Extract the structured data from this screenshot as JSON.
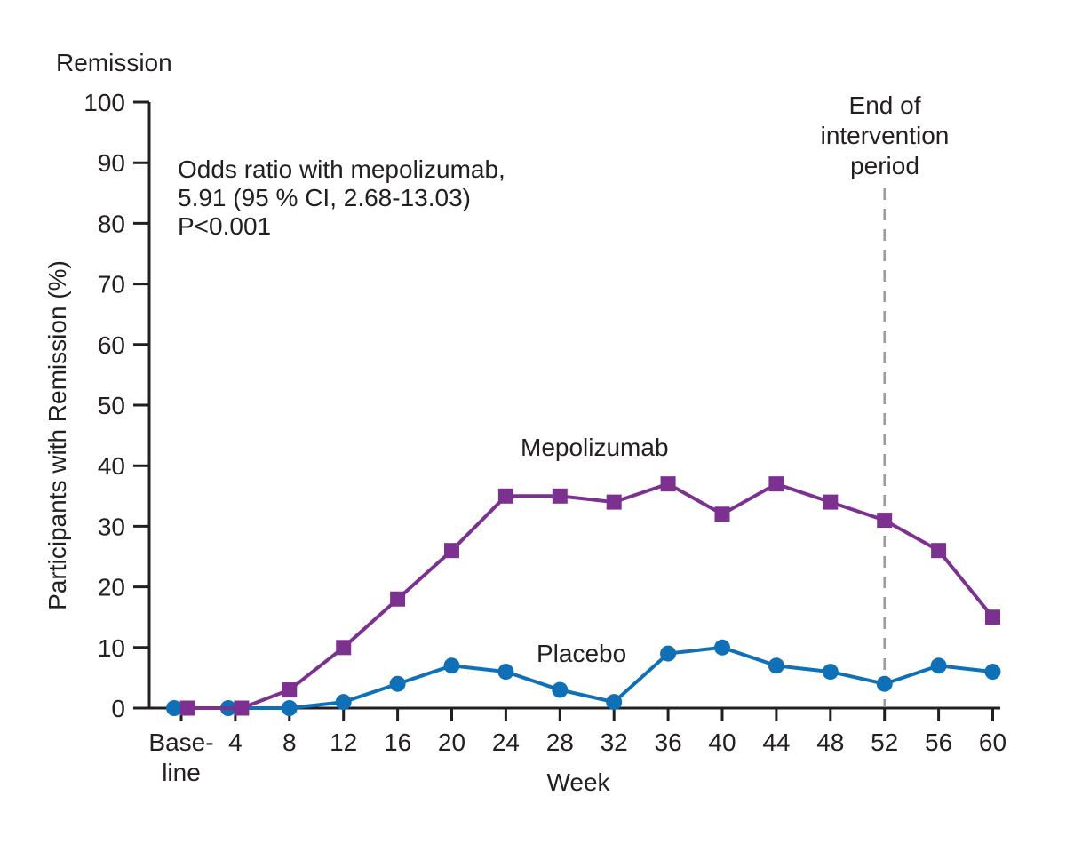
{
  "chart_data": {
    "type": "line",
    "title": "Remission",
    "xlabel": "Week",
    "ylabel": "Participants with Remission (%)",
    "ylim": [
      0,
      100
    ],
    "ytick_step": 10,
    "grid": false,
    "legend_position": "inline-labels",
    "categories": [
      "Baseline",
      "4",
      "8",
      "12",
      "16",
      "20",
      "24",
      "28",
      "32",
      "36",
      "40",
      "44",
      "48",
      "52",
      "56",
      "60"
    ],
    "x_tick_display": [
      [
        "Base-",
        "line"
      ],
      [
        "4"
      ],
      [
        "8"
      ],
      [
        "12"
      ],
      [
        "16"
      ],
      [
        "20"
      ],
      [
        "24"
      ],
      [
        "28"
      ],
      [
        "32"
      ],
      [
        "36"
      ],
      [
        "40"
      ],
      [
        "44"
      ],
      [
        "48"
      ],
      [
        "52"
      ],
      [
        "56"
      ],
      [
        "60"
      ]
    ],
    "series": [
      {
        "name": "Mepolizumab",
        "marker": "square",
        "color": "#7c3190",
        "values": [
          0,
          0,
          3,
          10,
          18,
          26,
          35,
          35,
          34,
          37,
          32,
          37,
          34,
          31,
          26,
          15
        ]
      },
      {
        "name": "Placebo",
        "marker": "circle",
        "color": "#0f70b7",
        "values": [
          0,
          0,
          0,
          1,
          4,
          7,
          6,
          3,
          1,
          9,
          10,
          7,
          6,
          4,
          7,
          6
        ]
      }
    ],
    "annotation": [
      "Odds ratio with mepolizumab,",
      "5.91 (95 % CI, 2.68-13.03)",
      "P<0.001"
    ],
    "event_line": {
      "week": "52",
      "color": "#98999b",
      "label_lines": [
        "End of",
        "intervention",
        "period"
      ]
    }
  }
}
